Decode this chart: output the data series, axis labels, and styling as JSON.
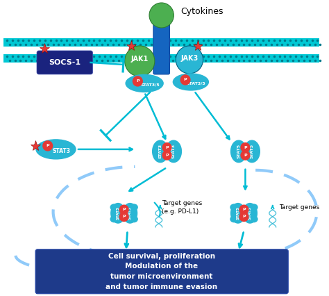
{
  "bg_color": "#ffffff",
  "membrane_color": "#00c8d4",
  "receptor_color": "#1565c0",
  "jak1_color": "#4caf50",
  "jak3_color": "#29b6d4",
  "stat_color": "#29b6d4",
  "socs_color": "#1a237e",
  "box_color": "#1e3a8a",
  "arrow_color": "#00bcd4",
  "red_color": "#e53935",
  "arc_color": "#90caf9",
  "title": "Cytokines",
  "socs_label": "SOCS-1",
  "jak1_label": "JAK1",
  "jak3_label": "JAK3",
  "stat35_label": "STAT3/5",
  "stat3_label": "STAT3",
  "stat5_label": "STAT5",
  "box_text": "Cell survival, proliferation\nModulation of the\ntumor microenvironment\nand tumor immune evasion",
  "target_genes1": "Target genes\n(e.g. PD-L1)",
  "target_genes2": "Target genes"
}
